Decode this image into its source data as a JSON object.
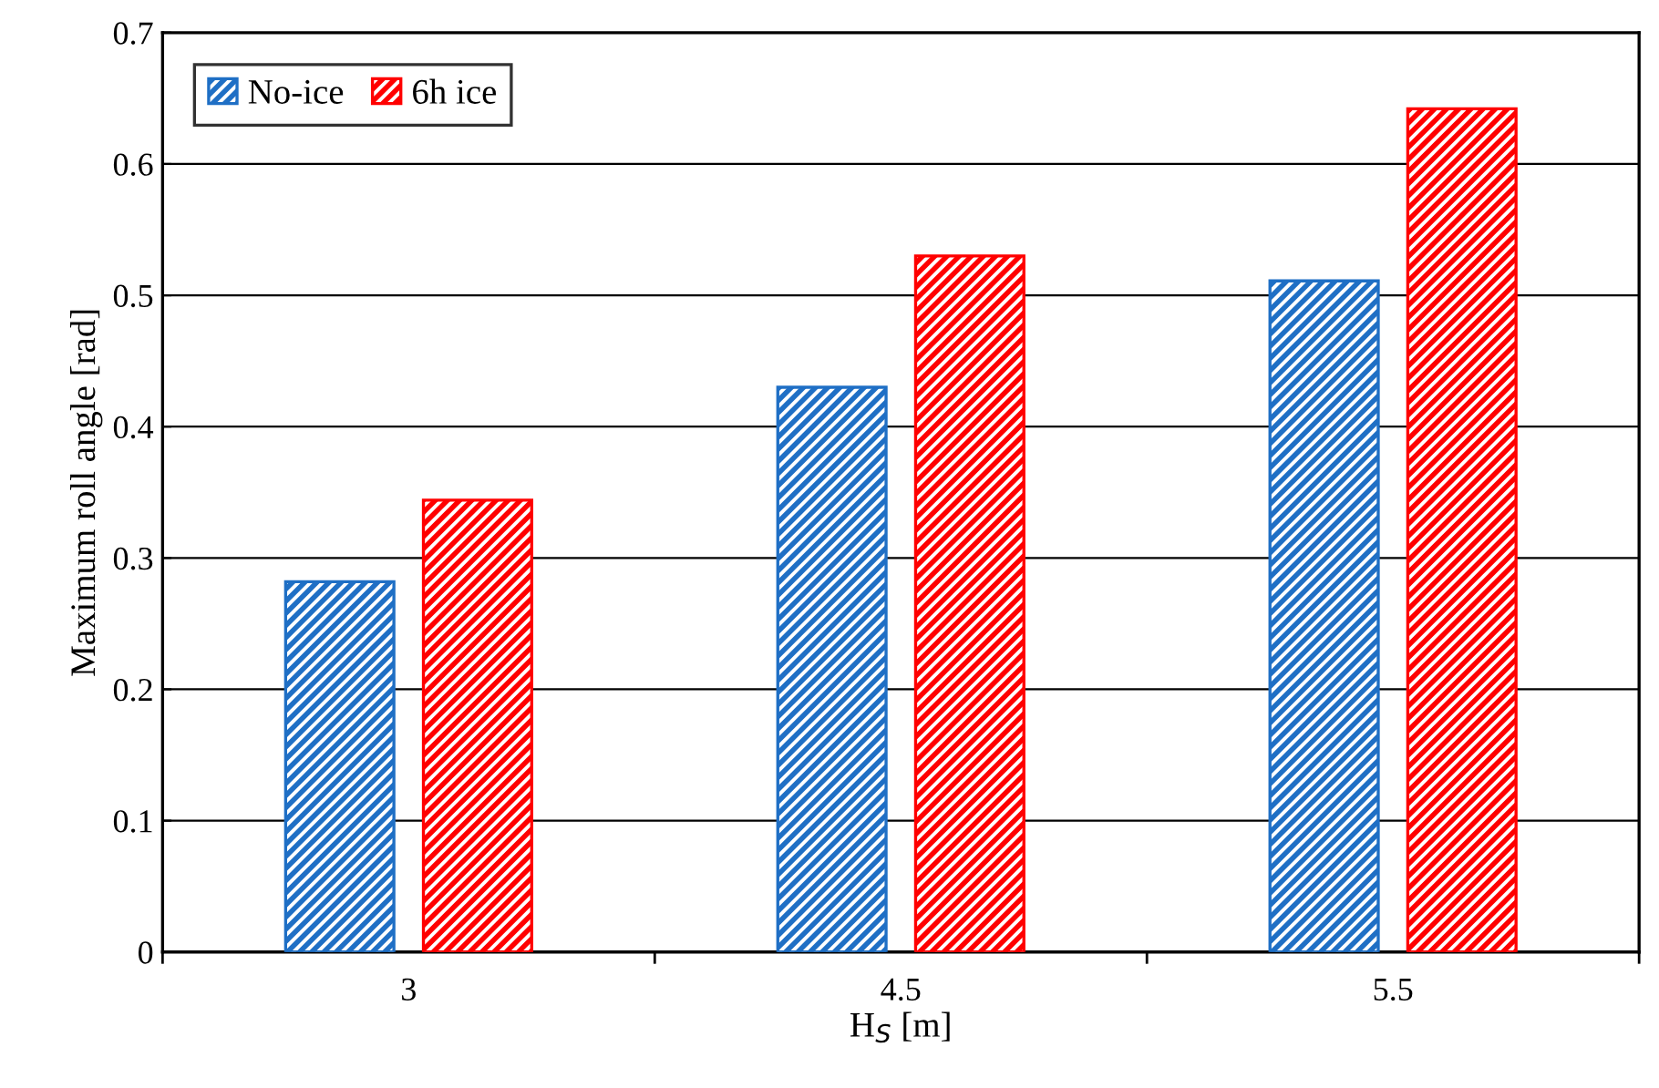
{
  "chart_data": {
    "type": "bar",
    "xlabel": "H$_{S}$ [m]",
    "ylabel": "Maximum roll angle [rad]",
    "categories": [
      "3",
      "4.5",
      "5.5"
    ],
    "series": [
      {
        "name": "No-ice",
        "color": "#1f6fc5",
        "values": [
          0.282,
          0.43,
          0.511
        ]
      },
      {
        "name": "6h ice",
        "color": "#ff0000",
        "values": [
          0.344,
          0.53,
          0.642
        ]
      }
    ],
    "ylim": [
      0,
      0.7
    ],
    "yticks": [
      0,
      0.1,
      0.2,
      0.3,
      0.4,
      0.5,
      0.6,
      0.7
    ],
    "grid": "y",
    "legend": "top left"
  }
}
